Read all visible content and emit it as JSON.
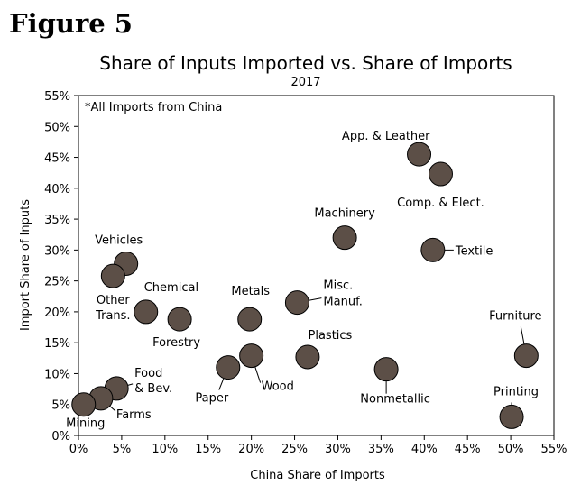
{
  "figure_label": "Figure 5",
  "chart_data": {
    "type": "scatter",
    "title": "Share of Inputs Imported vs. Share of Imports",
    "subtitle": "2017",
    "xlabel": "China Share of Imports",
    "ylabel": "Import Share of Inputs",
    "xlim": [
      0,
      55
    ],
    "ylim": [
      0,
      55
    ],
    "xticks": [
      0,
      5,
      10,
      15,
      20,
      25,
      30,
      35,
      40,
      45,
      50,
      55
    ],
    "yticks": [
      0,
      5,
      10,
      15,
      20,
      25,
      30,
      35,
      40,
      45,
      50,
      55
    ],
    "tick_suffix": "%",
    "grid": false,
    "annotation": "*All Imports from China",
    "marker_color": "#5c4f47",
    "points": [
      {
        "label": "App. & Leather",
        "x": 39.4,
        "y": 45.5
      },
      {
        "label": "Comp. & Elect.",
        "x": 41.9,
        "y": 42.3
      },
      {
        "label": "Machinery",
        "x": 30.8,
        "y": 32.0
      },
      {
        "label": "Textile",
        "x": 41.0,
        "y": 30.0
      },
      {
        "label": "Vehicles",
        "x": 5.5,
        "y": 27.8
      },
      {
        "label": "Other Trans.",
        "x": 4.0,
        "y": 25.8
      },
      {
        "label": "Chemical",
        "x": 7.8,
        "y": 20.0
      },
      {
        "label": "Forestry",
        "x": 11.7,
        "y": 18.8
      },
      {
        "label": "Metals",
        "x": 19.8,
        "y": 18.8
      },
      {
        "label": "Misc. Manuf.",
        "x": 25.3,
        "y": 21.5
      },
      {
        "label": "Furniture",
        "x": 51.8,
        "y": 12.9
      },
      {
        "label": "Plastics",
        "x": 26.5,
        "y": 12.7
      },
      {
        "label": "Wood",
        "x": 20.0,
        "y": 12.9
      },
      {
        "label": "Paper",
        "x": 17.3,
        "y": 11.0
      },
      {
        "label": "Nonmetallic",
        "x": 35.6,
        "y": 10.7
      },
      {
        "label": "Food & Bev.",
        "x": 4.4,
        "y": 7.6
      },
      {
        "label": "Farms",
        "x": 2.6,
        "y": 6.0
      },
      {
        "label": "Mining",
        "x": 0.6,
        "y": 5.0
      },
      {
        "label": "Printing",
        "x": 50.1,
        "y": 3.0
      }
    ]
  }
}
